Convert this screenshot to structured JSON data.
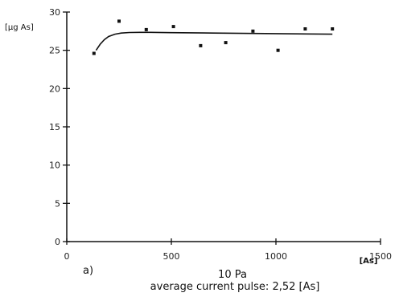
{
  "chart_data": {
    "type": "scatter",
    "x_axis": {
      "unit_label": "[As]",
      "range": [
        0,
        1500
      ],
      "ticks": [
        0,
        500,
        1000,
        1500
      ],
      "tick_labels": [
        "0",
        "500",
        "1000",
        "1500"
      ]
    },
    "y_axis": {
      "label": "[µg As]",
      "range": [
        0,
        30
      ],
      "ticks": [
        0,
        5,
        10,
        15,
        20,
        25,
        30
      ],
      "tick_labels": [
        "0",
        "5",
        "10",
        "15",
        "20",
        "25",
        "30"
      ]
    },
    "series": [
      {
        "type": "scatter",
        "x": [
          130,
          250,
          380,
          510,
          640,
          760,
          890,
          1010,
          1140,
          1270
        ],
        "y": [
          24.6,
          28.8,
          27.7,
          28.1,
          25.6,
          26.0,
          27.5,
          25.0,
          27.8,
          27.8
        ]
      },
      {
        "type": "fit-curve",
        "x": [
          140,
          160,
          180,
          200,
          230,
          260,
          300,
          350,
          400,
          500,
          700,
          900,
          1100,
          1270
        ],
        "y": [
          25.0,
          25.8,
          26.4,
          26.8,
          27.1,
          27.25,
          27.32,
          27.35,
          27.35,
          27.3,
          27.25,
          27.2,
          27.15,
          27.1
        ]
      }
    ],
    "grid": false,
    "legend": "none"
  },
  "caption": {
    "panel_label": "a)",
    "pressure": "10 Pa",
    "subtitle": "average current pulse: 2,52 [As]"
  }
}
